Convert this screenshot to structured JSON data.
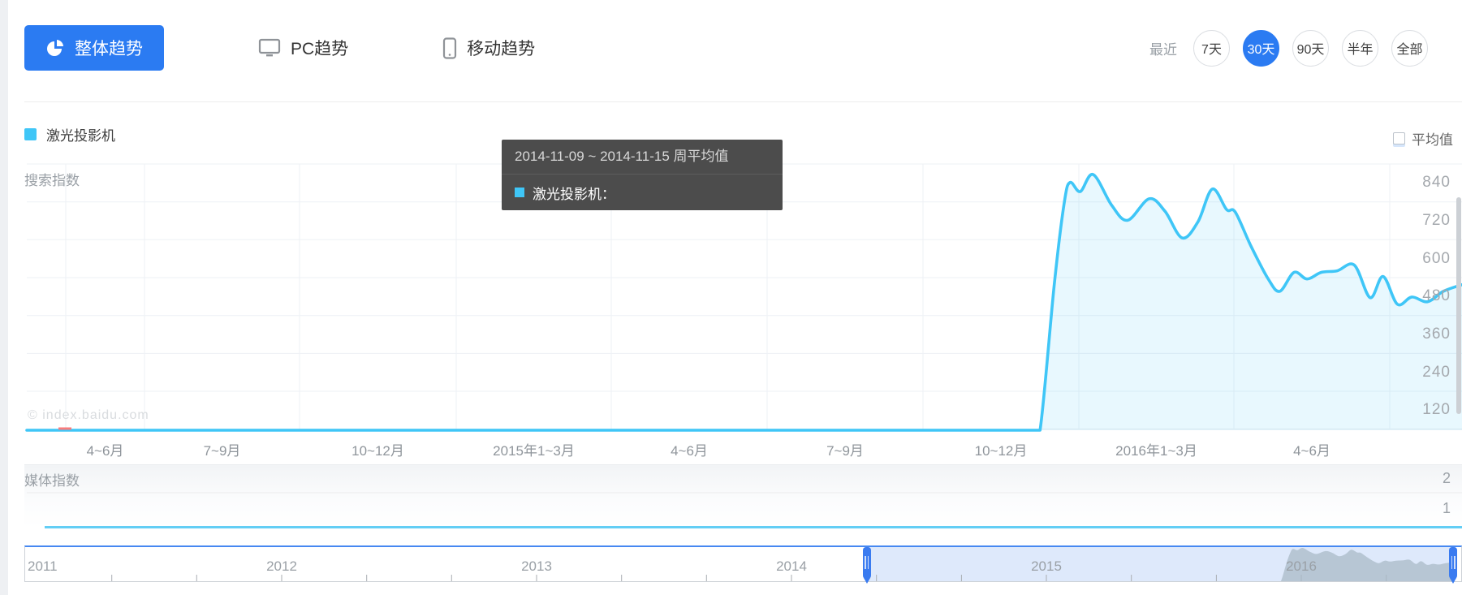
{
  "header": {
    "tabs": [
      {
        "label": "整体趋势",
        "icon": "pie-chart-icon",
        "active": true
      },
      {
        "label": "PC趋势",
        "icon": "monitor-icon",
        "active": false
      },
      {
        "label": "移动趋势",
        "icon": "mobile-icon",
        "active": false
      }
    ],
    "range": {
      "prefix_label": "最近",
      "options": [
        "7天",
        "30天",
        "90天",
        "半年",
        "全部"
      ],
      "selected": "30天",
      "selected_index": 1
    }
  },
  "legend": {
    "label": "激光投影机",
    "color": "#3fc6f7"
  },
  "average_checkbox": {
    "label": "平均值",
    "checked": false
  },
  "tooltip": {
    "title": "2014-11-09 ~ 2014-11-15 周平均值",
    "series_label": "激光投影机：",
    "value": "",
    "swatch_color": "#3fc6f7"
  },
  "search_section": {
    "axis_title": "搜索指数",
    "watermark": "© index.baidu.com"
  },
  "media_section": {
    "axis_title": "媒体指数",
    "y_ticks": [
      "2",
      "1"
    ]
  },
  "timeline": {
    "year_labels": [
      "2011",
      "2012",
      "2013",
      "2014",
      "2015",
      "2016"
    ]
  },
  "colors": {
    "accent_blue": "#2b7bf2",
    "series_cyan": "#3fc6f7",
    "series_fill": "rgba(62,197,246,0.12)",
    "tooltip_bg": "#424242",
    "grid": "#eef1f5",
    "axis_text": "#a4a8ad",
    "timeline_selection": "rgba(74,134,232,0.18)",
    "timeline_preview": "#a9bac7"
  },
  "chart_data": {
    "type": "area",
    "title": "",
    "y_axis_title": "搜索指数",
    "ylim": [
      0,
      960
    ],
    "grid": true,
    "legend_position": "top-left",
    "y_tick_labels": [
      840,
      720,
      600,
      480,
      360,
      240,
      120
    ],
    "x_tick_labels": [
      "4~6月",
      "7~9月",
      "10~12月",
      "2015年1~3月",
      "4~6月",
      "7~9月",
      "10~12月",
      "2016年1~3月",
      "4~6月"
    ],
    "series": [
      {
        "name": "激光投影机",
        "color": "#3fc6f7",
        "points": [
          [
            0,
            0
          ],
          [
            0.3,
            0
          ],
          [
            0.55,
            0
          ],
          [
            0.7,
            0
          ],
          [
            0.706,
            0
          ],
          [
            0.716,
            466
          ],
          [
            0.723,
            725
          ],
          [
            0.727,
            785
          ],
          [
            0.734,
            756
          ],
          [
            0.743,
            810
          ],
          [
            0.756,
            712
          ],
          [
            0.767,
            665
          ],
          [
            0.782,
            733
          ],
          [
            0.793,
            694
          ],
          [
            0.805,
            609
          ],
          [
            0.816,
            660
          ],
          [
            0.826,
            764
          ],
          [
            0.836,
            699
          ],
          [
            0.842,
            691
          ],
          [
            0.853,
            583
          ],
          [
            0.865,
            479
          ],
          [
            0.873,
            440
          ],
          [
            0.883,
            500
          ],
          [
            0.892,
            479
          ],
          [
            0.902,
            500
          ],
          [
            0.913,
            505
          ],
          [
            0.925,
            523
          ],
          [
            0.936,
            420
          ],
          [
            0.945,
            487
          ],
          [
            0.955,
            399
          ],
          [
            0.965,
            422
          ],
          [
            0.976,
            407
          ],
          [
            0.987,
            440
          ],
          [
            1,
            461
          ]
        ]
      }
    ],
    "media_series": {
      "name": "媒体指数",
      "y_ticks": [
        2,
        1
      ],
      "points": [
        [
          0,
          0
        ],
        [
          1,
          0
        ]
      ]
    },
    "timeline": {
      "years": [
        2011,
        2012,
        2013,
        2014,
        2015,
        2016
      ],
      "selection_start_frac": 0.586,
      "selection_end_frac": 0.994
    }
  }
}
